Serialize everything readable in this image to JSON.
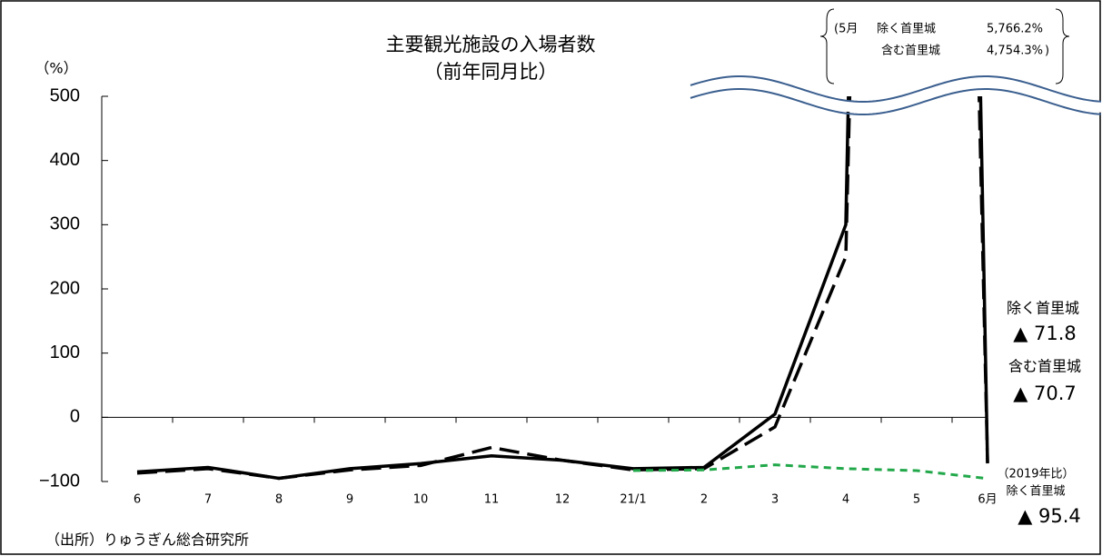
{
  "chart_data": {
    "type": "line",
    "title": "主要観光施設の入場者数",
    "subtitle": "（前年同月比）",
    "y_unit": "（%）",
    "source": "（出所）りゅうぎん総合研究所",
    "categories": [
      "6",
      "7",
      "8",
      "9",
      "10",
      "11",
      "12",
      "21/1",
      "2",
      "3",
      "4",
      "5",
      "6月"
    ],
    "ylim": [
      -100,
      500
    ],
    "yticks": [
      {
        "value": -100,
        "label": "−100"
      },
      0,
      100,
      200,
      300,
      400,
      500
    ],
    "annotation": {
      "month": "(5月",
      "close": ")"
    },
    "series": [
      {
        "name": "除く首里城",
        "color": "#000000",
        "line_style": "solid",
        "values": [
          -85,
          -78,
          -95,
          -80,
          -72,
          -60,
          -67,
          -80,
          -78,
          5,
          300,
          5766.2,
          -71.8
        ],
        "value_labels": [
          null,
          null,
          null,
          null,
          null,
          null,
          null,
          null,
          null,
          null,
          null,
          "5,766.2%",
          "▲ 71.8"
        ]
      },
      {
        "name": "含む首里城",
        "color": "#000000",
        "line_style": "dashed",
        "values": [
          -87,
          -80,
          -95,
          -82,
          -75,
          -47,
          -67,
          -82,
          -80,
          -15,
          250,
          4754.3,
          -70.7
        ],
        "value_labels": [
          null,
          null,
          null,
          null,
          null,
          null,
          null,
          null,
          null,
          null,
          null,
          "4,754.3%",
          "▲ 70.7"
        ]
      },
      {
        "name": "除く首里城",
        "basis": "（2019年比）",
        "color": "#22a84a",
        "line_style": "dotted",
        "values": [
          null,
          null,
          null,
          null,
          null,
          null,
          null,
          -83,
          -82,
          -74,
          -80,
          -83,
          -95.4
        ],
        "value_labels": [
          null,
          null,
          null,
          null,
          null,
          null,
          null,
          null,
          null,
          null,
          null,
          null,
          "▲ 95.4"
        ]
      }
    ]
  }
}
